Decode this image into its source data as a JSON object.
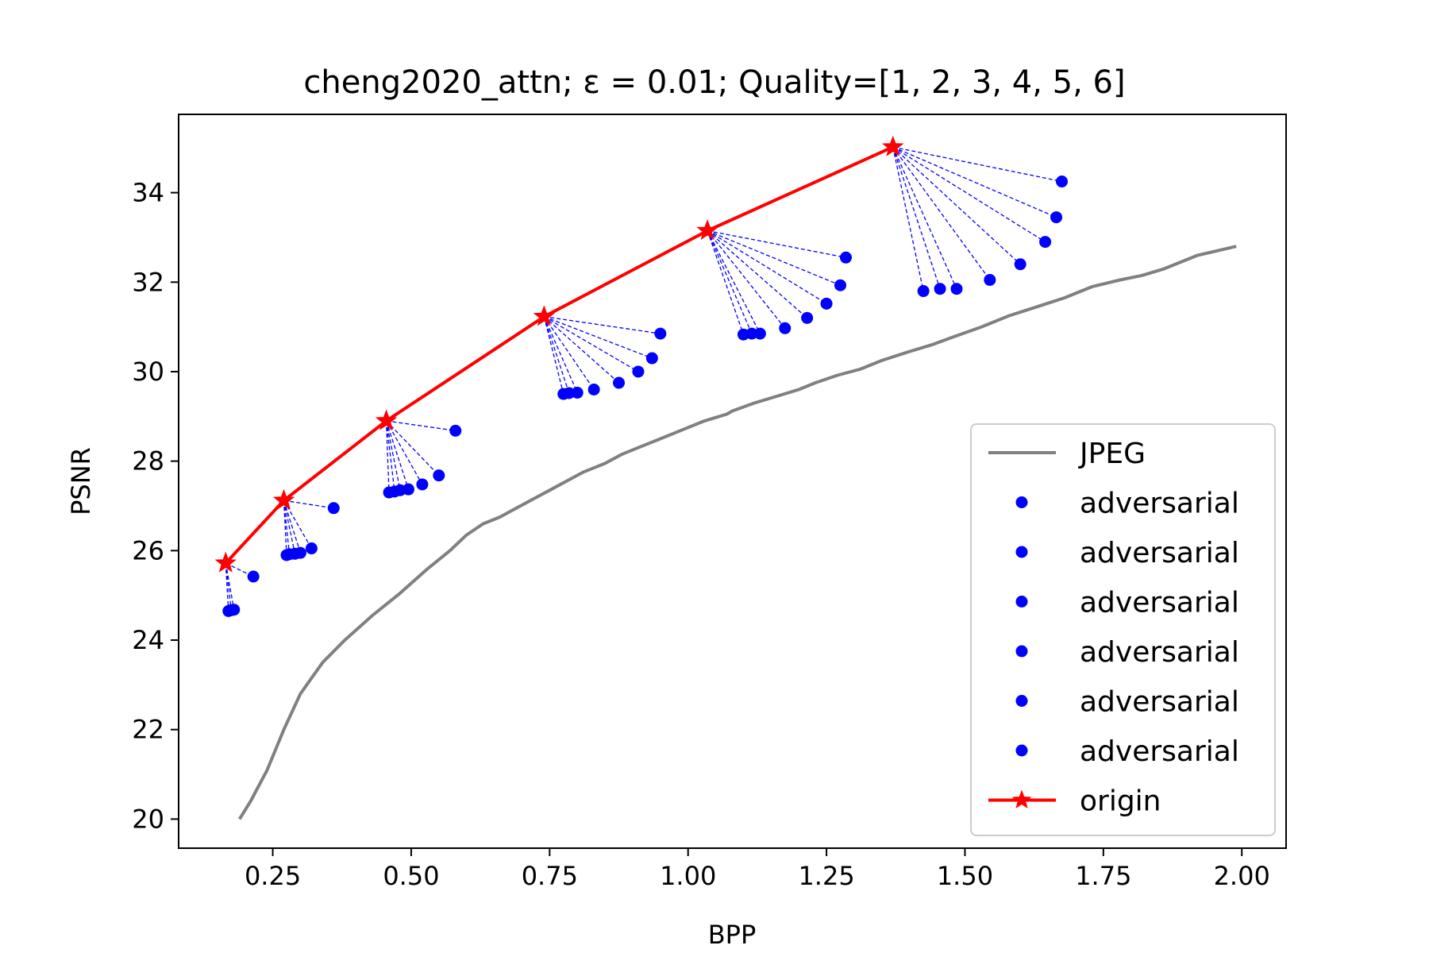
{
  "chart_data": {
    "type": "line",
    "title": "cheng2020_attn; ε = 0.01; Quality=[1, 2, 3, 4, 5, 6]",
    "xlabel": "BPP",
    "ylabel": "PSNR",
    "xlim": [
      0.08,
      2.08
    ],
    "ylim": [
      19.35,
      35.75
    ],
    "xticks": [
      0.25,
      0.5,
      0.75,
      1.0,
      1.25,
      1.5,
      1.75,
      2.0
    ],
    "xtick_labels": [
      "0.25",
      "0.50",
      "0.75",
      "1.00",
      "1.25",
      "1.50",
      "1.75",
      "2.00"
    ],
    "yticks": [
      20,
      22,
      24,
      26,
      28,
      30,
      32,
      34
    ],
    "ytick_labels": [
      "20",
      "22",
      "24",
      "26",
      "28",
      "30",
      "32",
      "34"
    ],
    "grid": false,
    "legend_position": "lower-right",
    "colors": {
      "jpeg": "#808080",
      "adversarial": "#0000ff",
      "origin": "#ff0000"
    },
    "series": [
      {
        "name": "JPEG",
        "kind": "line",
        "x": [
          0.19,
          0.21,
          0.24,
          0.27,
          0.3,
          0.34,
          0.38,
          0.43,
          0.48,
          0.53,
          0.57,
          0.6,
          0.63,
          0.66,
          0.69,
          0.72,
          0.75,
          0.78,
          0.81,
          0.85,
          0.88,
          0.91,
          0.95,
          0.99,
          1.03,
          1.07,
          1.08,
          1.12,
          1.16,
          1.2,
          1.23,
          1.27,
          1.31,
          1.35,
          1.4,
          1.44,
          1.48,
          1.53,
          1.58,
          1.63,
          1.68,
          1.73,
          1.78,
          1.82,
          1.86,
          1.92,
          1.99
        ],
        "y": [
          20.0,
          20.4,
          21.1,
          22.0,
          22.8,
          23.5,
          24.0,
          24.55,
          25.05,
          25.6,
          26.0,
          26.35,
          26.6,
          26.75,
          26.95,
          27.15,
          27.35,
          27.55,
          27.75,
          27.95,
          28.15,
          28.3,
          28.5,
          28.7,
          28.9,
          29.05,
          29.12,
          29.3,
          29.45,
          29.6,
          29.75,
          29.92,
          30.05,
          30.25,
          30.45,
          30.6,
          30.78,
          31.0,
          31.25,
          31.45,
          31.65,
          31.9,
          32.05,
          32.15,
          32.3,
          32.6,
          32.8
        ]
      },
      {
        "name": "adversarial",
        "kind": "scatter",
        "x": [
          0.17,
          0.175,
          0.18,
          0.215
        ],
        "y": [
          24.65,
          24.67,
          24.68,
          25.42
        ]
      },
      {
        "name": "adversarial",
        "kind": "scatter",
        "x": [
          0.275,
          0.28,
          0.29,
          0.3,
          0.32,
          0.36
        ],
        "y": [
          25.9,
          25.92,
          25.93,
          25.95,
          26.05,
          26.95
        ]
      },
      {
        "name": "adversarial",
        "kind": "scatter",
        "x": [
          0.46,
          0.47,
          0.48,
          0.495,
          0.52,
          0.55,
          0.58
        ],
        "y": [
          27.3,
          27.32,
          27.35,
          27.37,
          27.48,
          27.68,
          28.68
        ]
      },
      {
        "name": "adversarial",
        "kind": "scatter",
        "x": [
          0.775,
          0.785,
          0.8,
          0.83,
          0.875,
          0.91,
          0.935,
          0.95
        ],
        "y": [
          29.5,
          29.52,
          29.53,
          29.6,
          29.75,
          30.0,
          30.3,
          30.85
        ]
      },
      {
        "name": "adversarial",
        "kind": "scatter",
        "x": [
          1.1,
          1.115,
          1.13,
          1.175,
          1.215,
          1.25,
          1.275,
          1.285
        ],
        "y": [
          30.83,
          30.85,
          30.85,
          30.97,
          31.2,
          31.52,
          31.93,
          32.55
        ]
      },
      {
        "name": "adversarial",
        "kind": "scatter",
        "x": [
          1.425,
          1.455,
          1.485,
          1.545,
          1.6,
          1.645,
          1.665,
          1.675
        ],
        "y": [
          31.8,
          31.85,
          31.85,
          32.05,
          32.4,
          32.9,
          33.45,
          34.25
        ]
      },
      {
        "name": "origin",
        "kind": "line-star",
        "x": [
          0.165,
          0.27,
          0.455,
          0.74,
          1.035,
          1.37
        ],
        "y": [
          25.72,
          27.12,
          28.9,
          31.23,
          33.15,
          35.02
        ]
      }
    ],
    "legend": [
      "JPEG",
      "adversarial",
      "adversarial",
      "adversarial",
      "adversarial",
      "adversarial",
      "adversarial",
      "origin"
    ]
  }
}
